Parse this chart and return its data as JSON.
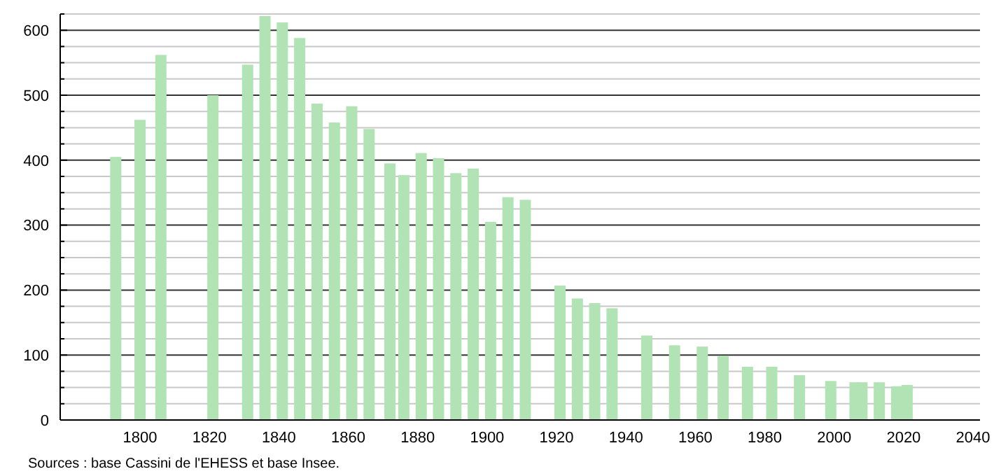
{
  "chart_data": {
    "type": "bar",
    "color": "#b1e3b5",
    "x": [
      1793,
      1800,
      1806,
      1821,
      1831,
      1836,
      1841,
      1846,
      1851,
      1856,
      1861,
      1866,
      1872,
      1876,
      1881,
      1886,
      1891,
      1896,
      1901,
      1906,
      1911,
      1921,
      1926,
      1931,
      1936,
      1946,
      1954,
      1962,
      1968,
      1975,
      1982,
      1990,
      1999,
      2006,
      2008,
      2013,
      2018,
      2021
    ],
    "values": [
      405,
      462,
      562,
      500,
      547,
      622,
      612,
      588,
      487,
      458,
      483,
      448,
      395,
      377,
      411,
      403,
      380,
      387,
      305,
      343,
      339,
      207,
      187,
      180,
      172,
      130,
      115,
      113,
      99,
      82,
      82,
      69,
      60,
      58,
      58,
      58,
      52,
      54
    ],
    "xlim": [
      1777,
      2042
    ],
    "xticks": [
      1800,
      1820,
      1840,
      1860,
      1880,
      1900,
      1920,
      1940,
      1960,
      1980,
      2000,
      2020,
      2040
    ],
    "ylim": [
      0,
      625
    ],
    "yticks": [
      0,
      {
        "value": 25,
        "label": null
      },
      {
        "value": 50,
        "label": null
      },
      {
        "value": 75,
        "label": null
      },
      100,
      {
        "value": 125,
        "label": null
      },
      {
        "value": 150,
        "label": null
      },
      {
        "value": 175,
        "label": null
      },
      200,
      {
        "value": 225,
        "label": null
      },
      {
        "value": 250,
        "label": null
      },
      {
        "value": 275,
        "label": null
      },
      300,
      {
        "value": 325,
        "label": null
      },
      {
        "value": 350,
        "label": null
      },
      {
        "value": 375,
        "label": null
      },
      400,
      {
        "value": 425,
        "label": null
      },
      {
        "value": 450,
        "label": null
      },
      {
        "value": 475,
        "label": null
      },
      500,
      {
        "value": 525,
        "label": null
      },
      {
        "value": 550,
        "label": null
      },
      {
        "value": 575,
        "label": null
      },
      600,
      {
        "value": 625,
        "label": null
      }
    ],
    "grid": "y",
    "annotations": [
      "Sources : base Cassini de l'EHESS et base Insee."
    ]
  }
}
